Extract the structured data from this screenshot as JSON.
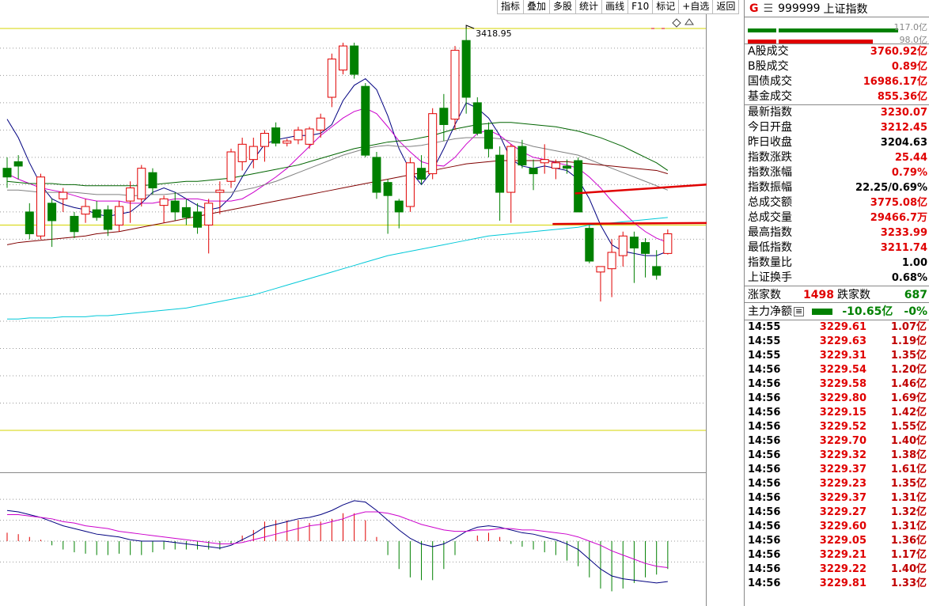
{
  "toolbar": [
    "指标",
    "叠加",
    "多股",
    "统计",
    "画线",
    "F10",
    "标记",
    "+自选",
    "返回"
  ],
  "header": {
    "g": "G",
    "menu_icon": "menu-icon",
    "code": "999999",
    "name": "上证指数"
  },
  "volume_bars": {
    "top_label": "117.0亿",
    "bottom_label": "98.0亿",
    "top_color": "#008000",
    "bottom_color": "#e00000",
    "top_ratio": 0.84,
    "bottom_ratio": 0.7
  },
  "stats": [
    {
      "label": "A股成交",
      "value": "3760.92亿",
      "color": "red"
    },
    {
      "label": "B股成交",
      "value": "0.89亿",
      "color": "red"
    },
    {
      "label": "国债成交",
      "value": "16986.17亿",
      "color": "red"
    },
    {
      "label": "基金成交",
      "value": "855.36亿",
      "color": "red"
    }
  ],
  "index_stats": [
    {
      "label": "最新指数",
      "value": "3230.07",
      "color": "red"
    },
    {
      "label": "今日开盘",
      "value": "3212.45",
      "color": "red"
    },
    {
      "label": "昨日收盘",
      "value": "3204.63",
      "color": "blk"
    },
    {
      "label": "指数涨跌",
      "value": "25.44",
      "color": "red"
    },
    {
      "label": "指数涨幅",
      "value": "0.79%",
      "color": "red"
    },
    {
      "label": "指数振幅",
      "value": "22.25/0.69%",
      "color": "blk"
    },
    {
      "label": "总成交额",
      "value": "3775.08亿",
      "color": "red"
    },
    {
      "label": "总成交量",
      "value": "29466.7万",
      "color": "red"
    },
    {
      "label": "最高指数",
      "value": "3233.99",
      "color": "red"
    },
    {
      "label": "最低指数",
      "value": "3211.74",
      "color": "red"
    },
    {
      "label": "指数量比",
      "value": "1.00",
      "color": "blk"
    },
    {
      "label": "上证换手",
      "value": "0.68%",
      "color": "blk"
    }
  ],
  "advance": {
    "up_label": "涨家数",
    "up_value": "1498",
    "down_label": "跌家数",
    "down_value": "687"
  },
  "main_flow": {
    "label": "主力净额",
    "icon": "list-icon",
    "value": "-10.65亿",
    "pct": "-0%"
  },
  "ticks": [
    {
      "time": "14:55",
      "price": "3229.61",
      "amount": "1.07亿"
    },
    {
      "time": "14:55",
      "price": "3229.63",
      "amount": "1.19亿"
    },
    {
      "time": "14:55",
      "price": "3229.31",
      "amount": "1.35亿"
    },
    {
      "time": "14:56",
      "price": "3229.54",
      "amount": "1.20亿"
    },
    {
      "time": "14:56",
      "price": "3229.58",
      "amount": "1.46亿"
    },
    {
      "time": "14:56",
      "price": "3229.80",
      "amount": "1.69亿"
    },
    {
      "time": "14:56",
      "price": "3229.15",
      "amount": "1.42亿"
    },
    {
      "time": "14:56",
      "price": "3229.52",
      "amount": "1.55亿"
    },
    {
      "time": "14:56",
      "price": "3229.70",
      "amount": "1.40亿"
    },
    {
      "time": "14:56",
      "price": "3229.32",
      "amount": "1.38亿"
    },
    {
      "time": "14:56",
      "price": "3229.37",
      "amount": "1.61亿"
    },
    {
      "time": "14:56",
      "price": "3229.23",
      "amount": "1.35亿"
    },
    {
      "time": "14:56",
      "price": "3229.37",
      "amount": "1.31亿"
    },
    {
      "time": "14:56",
      "price": "3229.27",
      "amount": "1.32亿"
    },
    {
      "time": "14:56",
      "price": "3229.60",
      "amount": "1.31亿"
    },
    {
      "time": "14:56",
      "price": "3229.05",
      "amount": "1.36亿"
    },
    {
      "time": "14:56",
      "price": "3229.21",
      "amount": "1.17亿"
    },
    {
      "time": "14:56",
      "price": "3229.22",
      "amount": "1.40亿"
    },
    {
      "time": "14:56",
      "price": "3229.81",
      "amount": "1.33亿"
    }
  ],
  "chart_data": {
    "type": "candlestick",
    "price_axis": {
      "ticks": [
        3050,
        3075,
        3100,
        3125,
        3150,
        3175,
        3200,
        3225,
        3250,
        3275,
        3300,
        3325,
        3350,
        3375,
        3400
      ],
      "range": [
        3024,
        3418
      ]
    },
    "high_label": "3418.95",
    "candles": [
      {
        "o": 3290,
        "h": 3300,
        "l": 3272,
        "c": 3282
      },
      {
        "o": 3296,
        "h": 3302,
        "l": 3280,
        "c": 3292
      },
      {
        "o": 3250,
        "h": 3258,
        "l": 3225,
        "c": 3230
      },
      {
        "o": 3228,
        "h": 3285,
        "l": 3225,
        "c": 3282
      },
      {
        "o": 3258,
        "h": 3262,
        "l": 3218,
        "c": 3242
      },
      {
        "o": 3262,
        "h": 3272,
        "l": 3250,
        "c": 3268
      },
      {
        "o": 3246,
        "h": 3250,
        "l": 3226,
        "c": 3232
      },
      {
        "o": 3248,
        "h": 3262,
        "l": 3240,
        "c": 3255
      },
      {
        "o": 3252,
        "h": 3260,
        "l": 3242,
        "c": 3245
      },
      {
        "o": 3252,
        "h": 3256,
        "l": 3228,
        "c": 3234
      },
      {
        "o": 3238,
        "h": 3260,
        "l": 3232,
        "c": 3255
      },
      {
        "o": 3260,
        "h": 3278,
        "l": 3240,
        "c": 3272
      },
      {
        "o": 3262,
        "h": 3293,
        "l": 3255,
        "c": 3290
      },
      {
        "o": 3286,
        "h": 3290,
        "l": 3266,
        "c": 3272
      },
      {
        "o": 3256,
        "h": 3265,
        "l": 3240,
        "c": 3262
      },
      {
        "o": 3260,
        "h": 3268,
        "l": 3242,
        "c": 3250
      },
      {
        "o": 3254,
        "h": 3262,
        "l": 3238,
        "c": 3245
      },
      {
        "o": 3250,
        "h": 3258,
        "l": 3230,
        "c": 3236
      },
      {
        "o": 3238,
        "h": 3262,
        "l": 3212,
        "c": 3258
      },
      {
        "o": 3268,
        "h": 3278,
        "l": 3248,
        "c": 3270
      },
      {
        "o": 3278,
        "h": 3308,
        "l": 3272,
        "c": 3305
      },
      {
        "o": 3296,
        "h": 3318,
        "l": 3288,
        "c": 3312
      },
      {
        "o": 3298,
        "h": 3318,
        "l": 3290,
        "c": 3310
      },
      {
        "o": 3310,
        "h": 3325,
        "l": 3296,
        "c": 3322
      },
      {
        "o": 3327,
        "h": 3332,
        "l": 3310,
        "c": 3313
      },
      {
        "o": 3313,
        "h": 3317,
        "l": 3310,
        "c": 3315
      },
      {
        "o": 3316,
        "h": 3328,
        "l": 3312,
        "c": 3325
      },
      {
        "o": 3312,
        "h": 3328,
        "l": 3308,
        "c": 3326
      },
      {
        "o": 3325,
        "h": 3340,
        "l": 3318,
        "c": 3336
      },
      {
        "o": 3355,
        "h": 3395,
        "l": 3346,
        "c": 3390
      },
      {
        "o": 3380,
        "h": 3405,
        "l": 3376,
        "c": 3402
      },
      {
        "o": 3402,
        "h": 3405,
        "l": 3372,
        "c": 3376
      },
      {
        "o": 3365,
        "h": 3368,
        "l": 3300,
        "c": 3302
      },
      {
        "o": 3300,
        "h": 3305,
        "l": 3262,
        "c": 3268
      },
      {
        "o": 3277,
        "h": 3280,
        "l": 3230,
        "c": 3265
      },
      {
        "o": 3260,
        "h": 3262,
        "l": 3235,
        "c": 3250
      },
      {
        "o": 3255,
        "h": 3300,
        "l": 3250,
        "c": 3295
      },
      {
        "o": 3290,
        "h": 3302,
        "l": 3275,
        "c": 3280
      },
      {
        "o": 3285,
        "h": 3345,
        "l": 3280,
        "c": 3340
      },
      {
        "o": 3345,
        "h": 3358,
        "l": 3315,
        "c": 3330
      },
      {
        "o": 3335,
        "h": 3402,
        "l": 3325,
        "c": 3398
      },
      {
        "o": 3407,
        "h": 3418,
        "l": 3340,
        "c": 3355
      },
      {
        "o": 3350,
        "h": 3355,
        "l": 3320,
        "c": 3322
      },
      {
        "o": 3325,
        "h": 3332,
        "l": 3300,
        "c": 3308
      },
      {
        "o": 3302,
        "h": 3310,
        "l": 3242,
        "c": 3268
      },
      {
        "o": 3268,
        "h": 3312,
        "l": 3240,
        "c": 3310
      },
      {
        "o": 3310,
        "h": 3316,
        "l": 3290,
        "c": 3293
      },
      {
        "o": 3290,
        "h": 3298,
        "l": 3270,
        "c": 3285
      },
      {
        "o": 3295,
        "h": 3312,
        "l": 3285,
        "c": 3298
      },
      {
        "o": 3290,
        "h": 3298,
        "l": 3280,
        "c": 3295
      },
      {
        "o": 3292,
        "h": 3298,
        "l": 3285,
        "c": 3290
      },
      {
        "o": 3297,
        "h": 3300,
        "l": 3250,
        "c": 3250
      },
      {
        "o": 3235,
        "h": 3238,
        "l": 3203,
        "c": 3205
      },
      {
        "o": 3195,
        "h": 3200,
        "l": 3168,
        "c": 3200
      },
      {
        "o": 3198,
        "h": 3225,
        "l": 3172,
        "c": 3213
      },
      {
        "o": 3210,
        "h": 3232,
        "l": 3200,
        "c": 3228
      },
      {
        "o": 3227,
        "h": 3232,
        "l": 3185,
        "c": 3217
      },
      {
        "o": 3222,
        "h": 3226,
        "l": 3190,
        "c": 3212
      },
      {
        "o": 3200,
        "h": 3215,
        "l": 3188,
        "c": 3192
      },
      {
        "o": 3212,
        "h": 3234,
        "l": 3211,
        "c": 3230
      }
    ],
    "reference_lines": [
      {
        "value": 3418,
        "color": "#d4d400"
      },
      {
        "value": 3238,
        "color": "#d4d400"
      },
      {
        "value": 3050,
        "color": "#d4d400"
      }
    ],
    "drawn_lines": [
      {
        "from_index": 51,
        "to_index": 62,
        "start_value": 3267,
        "end_value": 3276,
        "color": "#e00000"
      },
      {
        "from_index": 49,
        "to_index": 62,
        "start_value": 3239,
        "end_value": 3240,
        "color": "#e00000"
      }
    ],
    "moving_averages": [
      {
        "color": "#000080",
        "values": [
          3335,
          3318,
          3295,
          3275,
          3262,
          3257,
          3254,
          3252,
          3248,
          3246,
          3248,
          3250,
          3258,
          3268,
          3272,
          3268,
          3262,
          3256,
          3252,
          3254,
          3264,
          3282,
          3298,
          3312,
          3316,
          3318,
          3320,
          3320,
          3322,
          3330,
          3352,
          3366,
          3372,
          3362,
          3338,
          3308,
          3288,
          3275,
          3288,
          3308,
          3330,
          3350,
          3345,
          3336,
          3320,
          3298,
          3292,
          3290,
          3292,
          3290,
          3288,
          3280,
          3262,
          3238,
          3220,
          3214,
          3212,
          3210,
          3210,
          3214
        ]
      },
      {
        "color": "#cc00cc",
        "values": [
          3285,
          3280,
          3276,
          3272,
          3270,
          3268,
          3265,
          3262,
          3260,
          3260,
          3260,
          3258,
          3258,
          3258,
          3260,
          3262,
          3262,
          3262,
          3260,
          3260,
          3260,
          3262,
          3268,
          3275,
          3282,
          3290,
          3300,
          3310,
          3320,
          3328,
          3336,
          3342,
          3345,
          3340,
          3328,
          3315,
          3305,
          3296,
          3293,
          3292,
          3300,
          3312,
          3322,
          3325,
          3320,
          3312,
          3305,
          3300,
          3298,
          3295,
          3293,
          3290,
          3282,
          3272,
          3260,
          3250,
          3240,
          3232,
          3226,
          3222
        ]
      },
      {
        "color": "#808080",
        "values": [
          3270,
          3270,
          3269,
          3268,
          3268,
          3268,
          3268,
          3267,
          3266,
          3266,
          3266,
          3265,
          3265,
          3266,
          3266,
          3267,
          3268,
          3268,
          3268,
          3268,
          3268,
          3270,
          3272,
          3275,
          3278,
          3282,
          3286,
          3290,
          3294,
          3298,
          3302,
          3305,
          3308,
          3310,
          3311,
          3310,
          3310,
          3311,
          3313,
          3315,
          3317,
          3318,
          3318,
          3318,
          3317,
          3315,
          3313,
          3310,
          3308,
          3306,
          3304,
          3302,
          3298,
          3294,
          3290,
          3286,
          3282,
          3278,
          3274,
          3270
        ]
      },
      {
        "color": "#006400",
        "values": [
          3278,
          3277,
          3276,
          3276,
          3276,
          3275,
          3275,
          3274,
          3274,
          3274,
          3274,
          3274,
          3274,
          3275,
          3276,
          3277,
          3278,
          3278,
          3279,
          3280,
          3281,
          3283,
          3285,
          3287,
          3289,
          3291,
          3293,
          3296,
          3299,
          3302,
          3305,
          3308,
          3310,
          3312,
          3314,
          3315,
          3316,
          3318,
          3320,
          3323,
          3326,
          3328,
          3330,
          3331,
          3332,
          3332,
          3331,
          3330,
          3329,
          3328,
          3326,
          3324,
          3321,
          3318,
          3314,
          3310,
          3305,
          3300,
          3295,
          3288
        ]
      },
      {
        "color": "#800000",
        "values": [
          3220,
          3222,
          3223,
          3224,
          3225,
          3226,
          3227,
          3228,
          3230,
          3231,
          3232,
          3234,
          3236,
          3238,
          3240,
          3242,
          3244,
          3246,
          3248,
          3250,
          3252,
          3254,
          3256,
          3258,
          3260,
          3262,
          3264,
          3266,
          3268,
          3270,
          3272,
          3274,
          3276,
          3278,
          3280,
          3282,
          3284,
          3286,
          3288,
          3290,
          3292,
          3294,
          3295,
          3296,
          3297,
          3297,
          3297,
          3297,
          3297,
          3296,
          3296,
          3295,
          3294,
          3293,
          3292,
          3291,
          3290,
          3289,
          3288,
          3285
        ]
      },
      {
        "color": "#00c8d8",
        "values": [
          3152,
          3152,
          3153,
          3153,
          3153,
          3154,
          3154,
          3154,
          3155,
          3155,
          3156,
          3157,
          3158,
          3159,
          3160,
          3161,
          3162,
          3164,
          3166,
          3168,
          3170,
          3172,
          3174,
          3177,
          3180,
          3183,
          3186,
          3189,
          3192,
          3195,
          3198,
          3201,
          3204,
          3207,
          3210,
          3212,
          3214,
          3216,
          3218,
          3220,
          3222,
          3224,
          3226,
          3228,
          3229,
          3230,
          3231,
          3232,
          3233,
          3234,
          3235,
          3236,
          3238,
          3239,
          3240,
          3241,
          3242,
          3243,
          3244,
          3245
        ]
      }
    ],
    "macd": {
      "axis_ticks": [
        30,
        15,
        0,
        -15
      ],
      "range": [
        -42,
        42
      ],
      "dif": [
        22,
        21,
        19,
        17,
        14,
        11,
        9,
        7,
        5,
        4,
        3,
        1,
        0,
        0,
        0,
        -1,
        -2,
        -3,
        -4,
        -5,
        -3,
        1,
        5,
        10,
        12,
        14,
        16,
        17,
        19,
        22,
        26,
        29,
        28,
        22,
        15,
        8,
        2,
        -2,
        -4,
        -2,
        2,
        7,
        10,
        11,
        10,
        8,
        6,
        5,
        3,
        1,
        -2,
        -6,
        -13,
        -20,
        -25,
        -27,
        -28,
        -29,
        -30,
        -29
      ],
      "dea": [
        19,
        19,
        18,
        17,
        16,
        14,
        13,
        11,
        10,
        9,
        7,
        6,
        5,
        4,
        3,
        2,
        1,
        0,
        -1,
        -2,
        -2,
        -1,
        1,
        3,
        5,
        7,
        9,
        11,
        12,
        14,
        16,
        19,
        21,
        21,
        20,
        18,
        15,
        12,
        10,
        8,
        7,
        7,
        8,
        8,
        9,
        9,
        8,
        8,
        7,
        6,
        5,
        3,
        0,
        -3,
        -7,
        -10,
        -13,
        -16,
        -18,
        -19
      ],
      "hist": [
        6,
        5,
        3,
        1,
        -3,
        -6,
        -8,
        -9,
        -10,
        -10,
        -9,
        -10,
        -10,
        -8,
        -6,
        -6,
        -6,
        -6,
        -6,
        -6,
        -2,
        4,
        8,
        14,
        15,
        15,
        15,
        13,
        14,
        16,
        20,
        20,
        15,
        3,
        -10,
        -20,
        -26,
        -28,
        -28,
        -20,
        -10,
        0,
        4,
        6,
        3,
        -2,
        -4,
        -6,
        -8,
        -10,
        -14,
        -18,
        -26,
        -34,
        -36,
        -34,
        -30,
        -26,
        -24,
        -20
      ]
    }
  }
}
